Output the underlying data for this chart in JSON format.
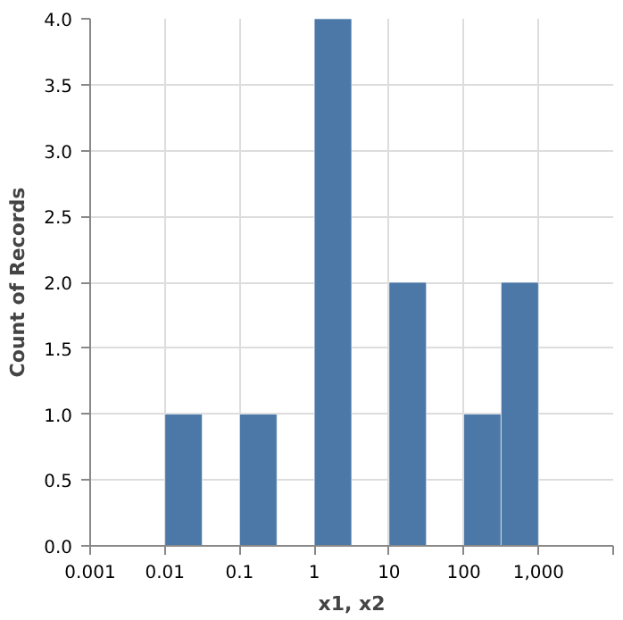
{
  "chart_data": {
    "type": "histogram",
    "xlabel": "x1, x2",
    "ylabel": "Count of Records",
    "log": "x",
    "color": "#4c78a8",
    "bins": [
      0.01,
      0.0316,
      0.1,
      0.316,
      1,
      3.16,
      10,
      31.6,
      100,
      316,
      1000
    ],
    "values": [
      1,
      0,
      1,
      0,
      4,
      0,
      2,
      0,
      1,
      2
    ],
    "xlim": [
      0.001,
      10000
    ],
    "xticks": [
      0.001,
      0.01,
      0.1,
      1,
      10,
      100,
      {
        "value": 1000,
        "label": "1,000"
      },
      {
        "value": 10000,
        "label": null
      }
    ],
    "ylim": [
      0,
      4
    ],
    "yticks": [
      {
        "value": 0,
        "label": "0.0"
      },
      {
        "value": 0.5,
        "label": "0.5"
      },
      {
        "value": 1,
        "label": "1.0"
      },
      {
        "value": 1.5,
        "label": "1.5"
      },
      {
        "value": 2,
        "label": "2.0"
      },
      {
        "value": 2.5,
        "label": "2.5"
      },
      {
        "value": 3,
        "label": "3.0"
      },
      {
        "value": 3.5,
        "label": "3.5"
      },
      {
        "value": 4,
        "label": "4.0"
      }
    ],
    "grid": true
  }
}
